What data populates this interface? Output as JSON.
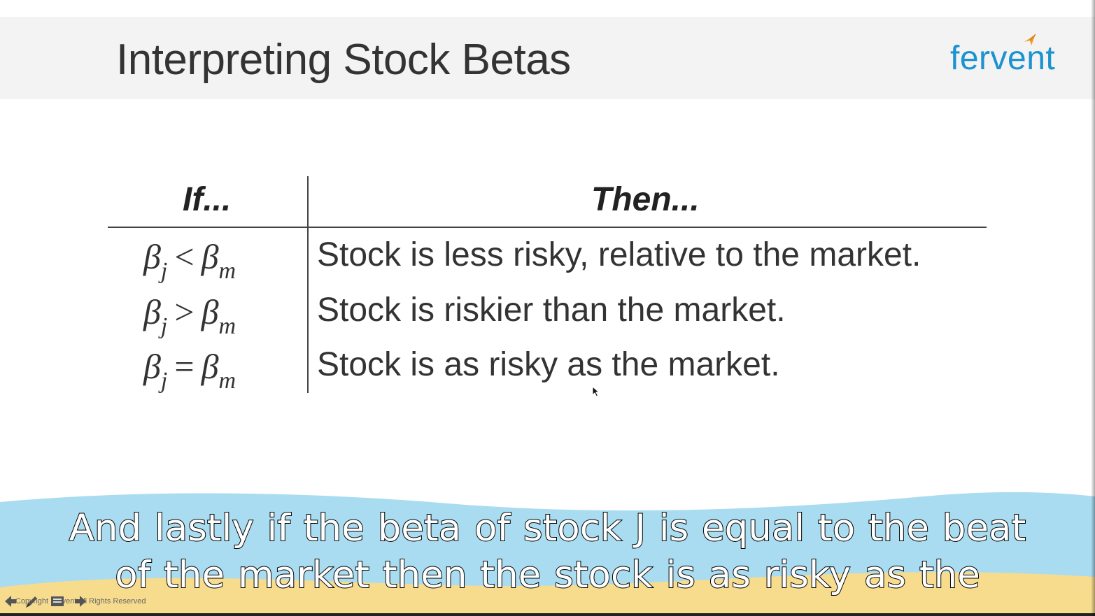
{
  "slide": {
    "title": "Interpreting Stock Betas",
    "logo_text": "fervent"
  },
  "table": {
    "headers": {
      "condition": "If...",
      "result": "Then..."
    },
    "rows": [
      {
        "beta_left": "β",
        "sub_left": "j",
        "operator": "<",
        "beta_right": "β",
        "sub_right": "m",
        "result": "Stock is less risky, relative to the market."
      },
      {
        "beta_left": "β",
        "sub_left": "j",
        "operator": ">",
        "beta_right": "β",
        "sub_right": "m",
        "result": "Stock is riskier than the market."
      },
      {
        "beta_left": "β",
        "sub_left": "j",
        "operator": "=",
        "beta_right": "β",
        "sub_right": "m",
        "result": "Stock is as risky as the market."
      }
    ]
  },
  "caption": {
    "line1": "And lastly if the beta of stock J is equal to the beat",
    "line2": "of the market then the stock is as risky as the"
  },
  "footer": {
    "copyright": "Copyright Fervent All Rights Reserved"
  },
  "colors": {
    "title_band": "#f3f3f3",
    "logo": "#1b93d1",
    "logo_arrow": "#f39c2a",
    "wave_blue": "#a9dcf0",
    "wave_sand": "#f7dc8e"
  }
}
